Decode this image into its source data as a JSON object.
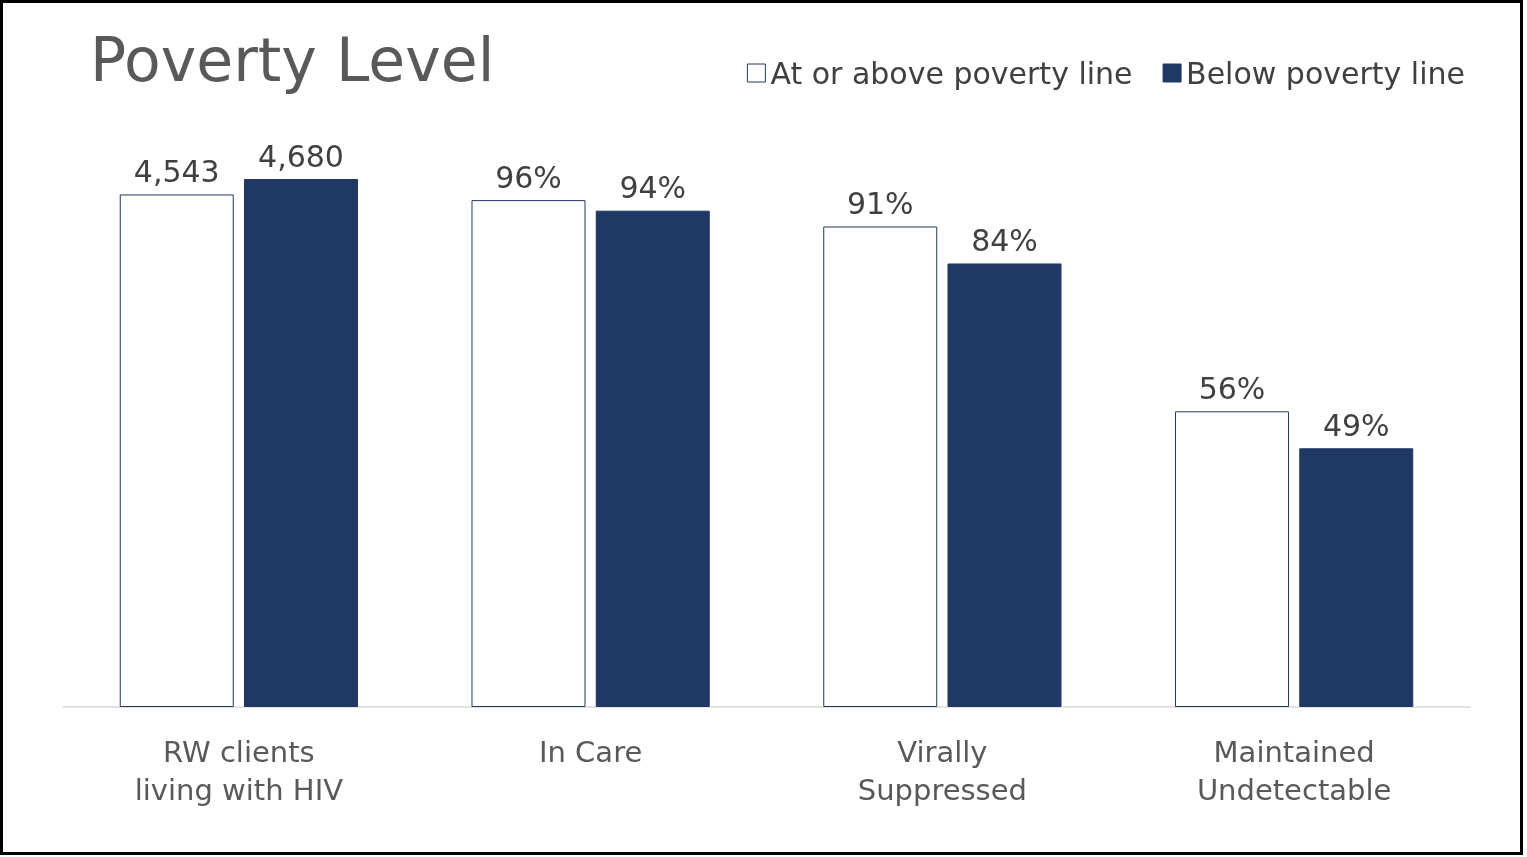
{
  "chart_data": {
    "type": "bar",
    "title": "Poverty Level",
    "categories": [
      "RW clients\nliving with HIV",
      "In Care",
      "Virally\nSuppressed",
      "Maintained\nUndetectable"
    ],
    "series": [
      {
        "name": "At or above poverty line",
        "color": "#ffffff",
        "values": [
          null,
          96,
          91,
          56
        ],
        "value_labels": [
          null,
          "96%",
          "91%",
          "56%"
        ]
      },
      {
        "name": "Below poverty line",
        "color": "#203864",
        "values": [
          null,
          94,
          84,
          49
        ],
        "value_labels": [
          null,
          "94%",
          "84%",
          "49%"
        ]
      },
      {
        "color": "#ffffff",
        "axis": "y2",
        "values": [
          4543,
          null,
          null,
          null
        ],
        "value_labels": [
          "4,543",
          null,
          null,
          null
        ]
      },
      {
        "color": "#203864",
        "axis": "y2",
        "values": [
          4680,
          null,
          null,
          null
        ],
        "value_labels": [
          "4,680",
          null,
          null,
          null
        ]
      }
    ],
    "ylim": [
      0,
      100
    ],
    "y2lim": [
      0,
      4680
    ],
    "tick_labels": "x",
    "legend": "top right"
  }
}
